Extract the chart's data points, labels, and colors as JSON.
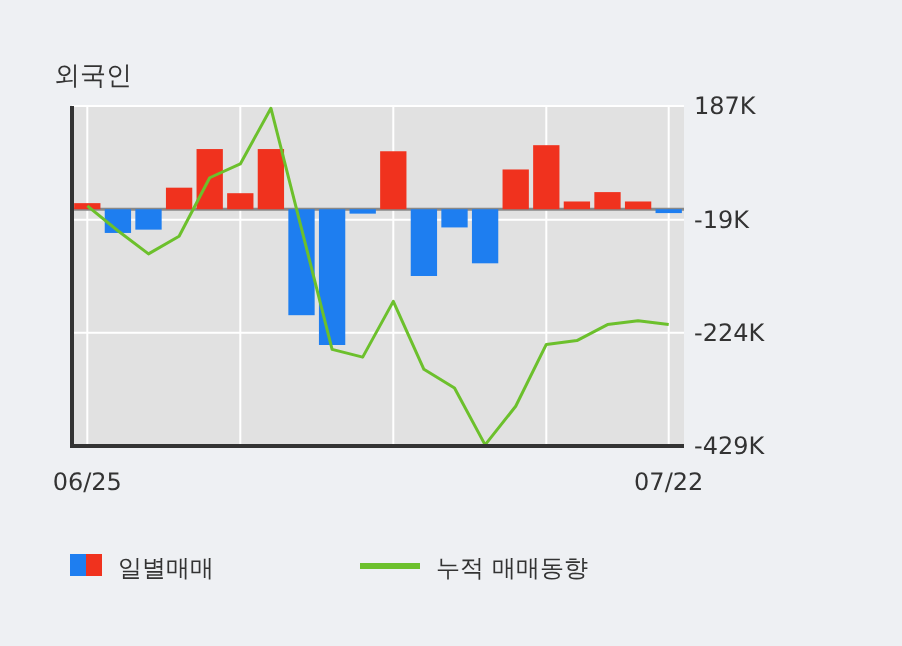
{
  "chart_data": {
    "type": "bar",
    "title": "외국인",
    "categories": [
      "06/25",
      null,
      null,
      null,
      null,
      null,
      null,
      null,
      null,
      null,
      null,
      null,
      null,
      null,
      null,
      null,
      null,
      null,
      null,
      "07/22"
    ],
    "series": [
      {
        "name": "일별매매",
        "colors": [
          "#f0321e",
          "#1e7ef0",
          "#1e7ef0",
          "#f0321e",
          "#f0321e",
          "#f0321e",
          "#f0321e",
          "#1e7ef0",
          "#1e7ef0",
          "#1e7ef0",
          "#f0321e",
          "#1e7ef0",
          "#1e7ef0",
          "#1e7ef0",
          "#f0321e",
          "#f0321e",
          "#f0321e",
          "#f0321e",
          "#f0321e",
          "#1e7ef0"
        ],
        "values": [
          11,
          -43,
          -37,
          39,
          109,
          29,
          109,
          -192,
          -246,
          -8,
          105,
          -121,
          -33,
          -98,
          72,
          116,
          14,
          31,
          14,
          -7
        ]
      },
      {
        "type": "line",
        "name": "누적 매매동향",
        "color": "#6cc02c",
        "values": [
          6,
          -39,
          -81,
          -49,
          57,
          82,
          183,
          -35,
          -254,
          -268,
          -167,
          -290,
          -324,
          -427,
          -357,
          -245,
          -238,
          -209,
          -202,
          -209
        ]
      }
    ],
    "ylim": [
      -429,
      187
    ],
    "yticks": [
      {
        "value": 187,
        "label": "187K"
      },
      {
        "value": -19,
        "label": "-19K"
      },
      {
        "value": -224,
        "label": "-224K"
      },
      {
        "value": -429,
        "label": "-429K"
      }
    ],
    "grid": true,
    "legend": "bottom"
  }
}
